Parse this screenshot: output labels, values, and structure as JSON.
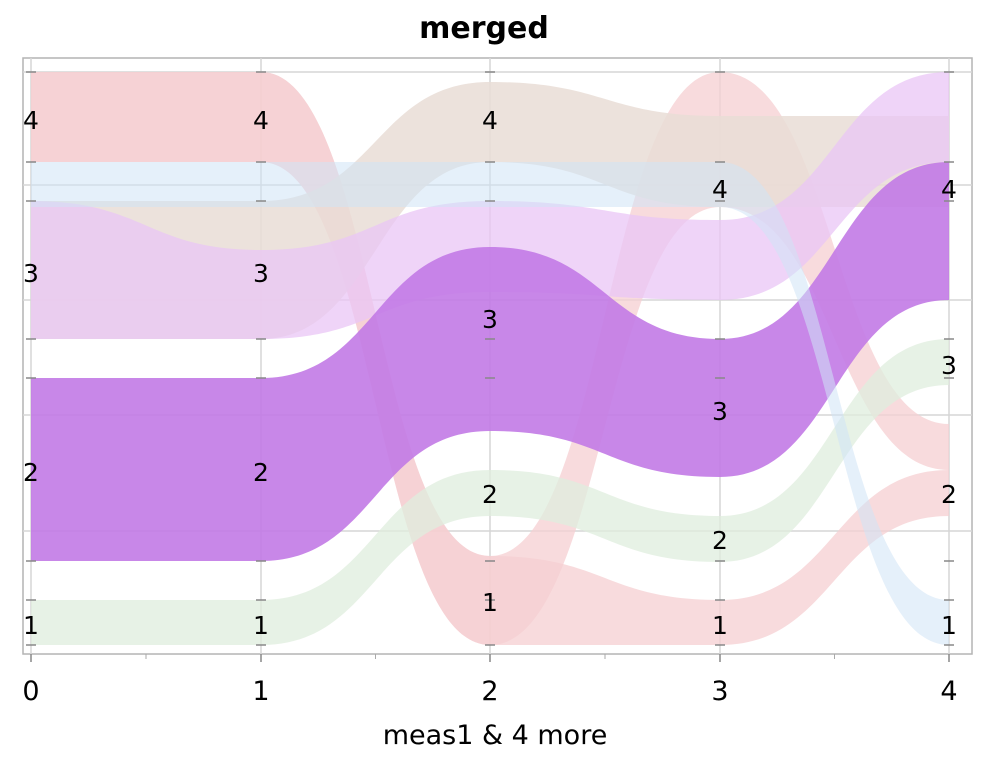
{
  "chart_data": {
    "type": "parallel-sets",
    "title": "merged",
    "xlabel": "meas1 & 4 more",
    "x": [
      0,
      1,
      2,
      3,
      4
    ],
    "x_tick_labels": [
      "0",
      "1",
      "2",
      "3",
      "4"
    ],
    "levels": [
      "1",
      "2",
      "3",
      "4"
    ],
    "colors": {
      "group_1": "#cfe3f6",
      "group_2": "#f6cfd2",
      "group_3": "#eac6f5",
      "group_4": "#c27ae6",
      "group_5": "#dfeedd",
      "group_6": "#e9ddd6",
      "group_7": "#e2d5e4"
    },
    "node_labels": [
      {
        "x": 0,
        "level": "4",
        "text": "4"
      },
      {
        "x": 0,
        "level": "3",
        "text": "3"
      },
      {
        "x": 0,
        "level": "2",
        "text": "2"
      },
      {
        "x": 0,
        "level": "1",
        "text": "1"
      },
      {
        "x": 1,
        "level": "4",
        "text": "4"
      },
      {
        "x": 1,
        "level": "3",
        "text": "3"
      },
      {
        "x": 1,
        "level": "2",
        "text": "2"
      },
      {
        "x": 1,
        "level": "1",
        "text": "1"
      },
      {
        "x": 2,
        "level": "4",
        "text": "4"
      },
      {
        "x": 2,
        "level": "3",
        "text": "3"
      },
      {
        "x": 2,
        "level": "2",
        "text": "2"
      },
      {
        "x": 2,
        "level": "1",
        "text": "1"
      },
      {
        "x": 3,
        "level": "4",
        "text": "4"
      },
      {
        "x": 3,
        "level": "3",
        "text": "3"
      },
      {
        "x": 3,
        "level": "2",
        "text": "2"
      },
      {
        "x": 3,
        "level": "1",
        "text": "1"
      },
      {
        "x": 4,
        "level": "4",
        "text": "4"
      },
      {
        "x": 4,
        "level": "3",
        "text": "3"
      },
      {
        "x": 4,
        "level": "2",
        "text": "2"
      },
      {
        "x": 4,
        "level": "1",
        "text": "1"
      }
    ],
    "flows": [
      {
        "group": "group_2",
        "path": [
          "4",
          "4",
          "1",
          "1",
          "2"
        ]
      },
      {
        "group": "group_2",
        "path": [
          "4",
          "4",
          "1",
          "4",
          "2"
        ]
      },
      {
        "group": "group_6",
        "path": [
          "3",
          "3",
          "4",
          "4",
          "4"
        ]
      },
      {
        "group": "group_3",
        "path": [
          "3",
          "3",
          "3",
          "4",
          "4"
        ]
      },
      {
        "group": "group_4",
        "path": [
          "2",
          "2",
          "3",
          "3",
          "4"
        ]
      },
      {
        "group": "group_5",
        "path": [
          "1",
          "1",
          "2",
          "2",
          "3"
        ]
      },
      {
        "group": "group_1",
        "path": [
          "4",
          "4",
          "4",
          "4",
          "1"
        ]
      }
    ]
  }
}
